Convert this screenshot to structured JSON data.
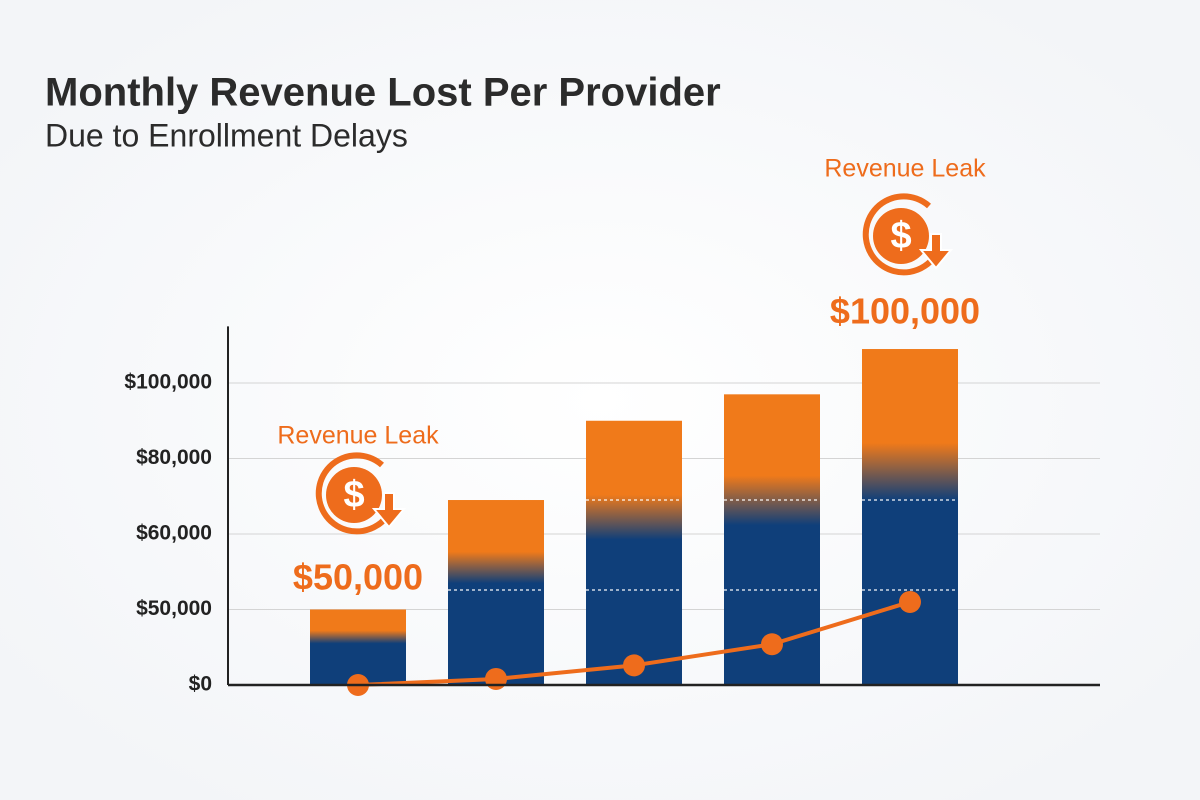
{
  "chart_data": {
    "type": "bar",
    "title": "Monthly Revenue Lost Per Provider",
    "subtitle": "Due to Enrollment Delays",
    "categories": [
      null,
      null,
      null,
      null,
      null
    ],
    "series": [
      {
        "type": "bar",
        "color": "#0f3f7a",
        "top_color": "#f07a1a",
        "values": [
          50000,
          69000,
          90000,
          97000,
          109000
        ]
      },
      {
        "type": "line",
        "color": "#ee6c1c",
        "values": [
          0,
          4000,
          13000,
          27000,
          51000
        ]
      }
    ],
    "ylim": [
      0,
      115000
    ],
    "yticks": [
      {
        "value": 0,
        "label": "$0"
      },
      {
        "value": 50000,
        "label": "$50,000"
      },
      {
        "value": 60000,
        "label": "$60,000"
      },
      {
        "value": 80000,
        "label": "$80,000"
      },
      {
        "value": 100000,
        "label": "$100,000"
      }
    ],
    "grid": true,
    "annotations": [
      {
        "text": "Revenue Leak",
        "amount": "$50,000"
      },
      {
        "text": "Revenue Leak",
        "amount": "$100,000"
      }
    ]
  }
}
